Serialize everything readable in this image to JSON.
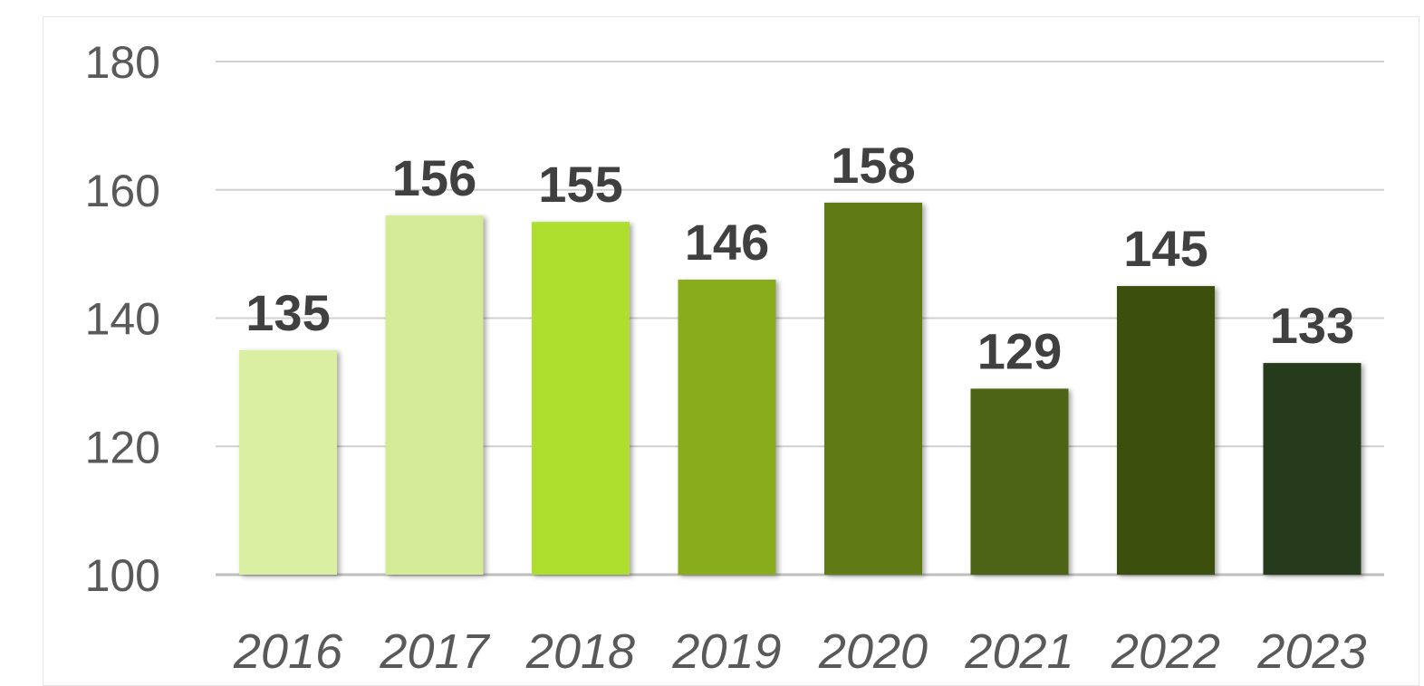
{
  "chart_data": {
    "type": "bar",
    "categories": [
      "2016",
      "2017",
      "2018",
      "2019",
      "2020",
      "2021",
      "2022",
      "2023"
    ],
    "values": [
      135,
      156,
      155,
      146,
      158,
      129,
      145,
      133
    ],
    "title": "",
    "xlabel": "",
    "ylabel": "",
    "ylim": [
      100,
      180
    ],
    "yticks": [
      100,
      120,
      140,
      160,
      180
    ],
    "grid": true,
    "legend": "none",
    "colors": [
      "#dbefa3",
      "#d5eb97",
      "#aedf2e",
      "#89ac1f",
      "#617a17",
      "#4d6312",
      "#3e500f",
      "#273a1a"
    ]
  }
}
